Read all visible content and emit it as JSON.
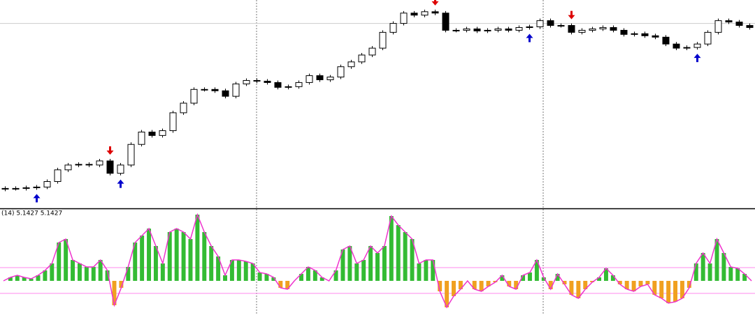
{
  "chart_data": [
    {
      "type": "candlestick",
      "open": [
        27,
        28,
        28,
        29,
        30,
        38,
        55,
        62,
        63,
        62,
        68,
        50,
        62,
        92,
        110,
        105,
        112,
        138,
        152,
        172,
        172,
        170,
        162,
        180,
        185,
        184,
        182,
        175,
        176,
        182,
        192,
        186,
        190,
        205,
        212,
        222,
        232,
        255,
        268,
        283,
        280,
        285,
        283,
        258,
        258,
        260,
        257,
        258,
        260,
        258,
        262,
        263,
        272,
        265,
        265,
        255,
        258,
        260,
        262,
        258,
        252,
        253,
        250,
        248,
        238,
        232,
        233,
        238,
        255,
        272,
        270,
        265
      ],
      "high": [
        31,
        31,
        32,
        33,
        41,
        58,
        65,
        66,
        66,
        71,
        71,
        65,
        95,
        113,
        113,
        115,
        141,
        155,
        175,
        175,
        175,
        173,
        183,
        188,
        188,
        187,
        185,
        179,
        185,
        195,
        195,
        193,
        208,
        215,
        225,
        235,
        258,
        271,
        286,
        286,
        288,
        288,
        286,
        261,
        263,
        263,
        261,
        263,
        263,
        265,
        266,
        275,
        275,
        268,
        268,
        261,
        263,
        265,
        265,
        261,
        256,
        256,
        253,
        251,
        241,
        236,
        241,
        258,
        275,
        275,
        273,
        268
      ],
      "low": [
        24,
        25,
        25,
        26,
        27,
        35,
        52,
        59,
        59,
        59,
        47,
        47,
        59,
        89,
        102,
        102,
        109,
        135,
        149,
        169,
        167,
        159,
        159,
        177,
        181,
        179,
        172,
        172,
        173,
        179,
        183,
        183,
        187,
        202,
        209,
        219,
        229,
        252,
        265,
        277,
        277,
        280,
        255,
        255,
        255,
        254,
        254,
        255,
        255,
        255,
        259,
        260,
        262,
        262,
        252,
        252,
        255,
        257,
        255,
        249,
        249,
        247,
        245,
        235,
        229,
        229,
        230,
        235,
        252,
        267,
        262,
        259
      ],
      "close": [
        28,
        28,
        29,
        30,
        38,
        55,
        62,
        63,
        62,
        68,
        50,
        62,
        92,
        110,
        105,
        112,
        138,
        152,
        172,
        172,
        170,
        162,
        180,
        185,
        184,
        182,
        175,
        176,
        182,
        192,
        186,
        190,
        205,
        212,
        222,
        232,
        255,
        268,
        283,
        280,
        285,
        283,
        258,
        258,
        260,
        257,
        258,
        260,
        258,
        262,
        263,
        272,
        265,
        265,
        255,
        258,
        260,
        262,
        258,
        252,
        253,
        250,
        248,
        238,
        232,
        233,
        238,
        255,
        272,
        270,
        265,
        262
      ],
      "buy_signals": [
        3,
        11,
        50,
        66
      ],
      "sell_signals": [
        10,
        41,
        54
      ],
      "buy_color": "#0000cc",
      "sell_color": "#dd0000",
      "hlines": [
        268
      ],
      "ylim": [
        0,
        300
      ]
    },
    {
      "type": "bar",
      "label": "(14) 5.1427 5.1427",
      "values": [
        0,
        5,
        8,
        5,
        3,
        8,
        15,
        25,
        55,
        60,
        30,
        25,
        20,
        20,
        30,
        15,
        -35,
        -10,
        20,
        55,
        65,
        75,
        50,
        25,
        70,
        75,
        70,
        60,
        95,
        70,
        50,
        35,
        8,
        30,
        30,
        28,
        25,
        12,
        10,
        5,
        -10,
        -12,
        0,
        10,
        20,
        15,
        5,
        0,
        15,
        45,
        50,
        25,
        30,
        50,
        40,
        50,
        93,
        80,
        70,
        60,
        25,
        30,
        30,
        -15,
        -38,
        -22,
        -12,
        0,
        -12,
        -15,
        -8,
        -2,
        8,
        -8,
        -12,
        8,
        12,
        30,
        5,
        -12,
        10,
        -5,
        -20,
        -25,
        -12,
        -2,
        5,
        18,
        8,
        -5,
        -12,
        -15,
        -8,
        -5,
        -20,
        -25,
        -32,
        -30,
        -25,
        -10,
        25,
        40,
        25,
        60,
        40,
        20,
        18,
        10,
        0
      ],
      "positive_color": "#33bb33",
      "negative_color": "#f0a020",
      "line_color": "#ee33cc",
      "levels": [
        19,
        -18
      ],
      "level_color": "#ff88ee",
      "ylim": [
        -49,
        103
      ]
    }
  ]
}
